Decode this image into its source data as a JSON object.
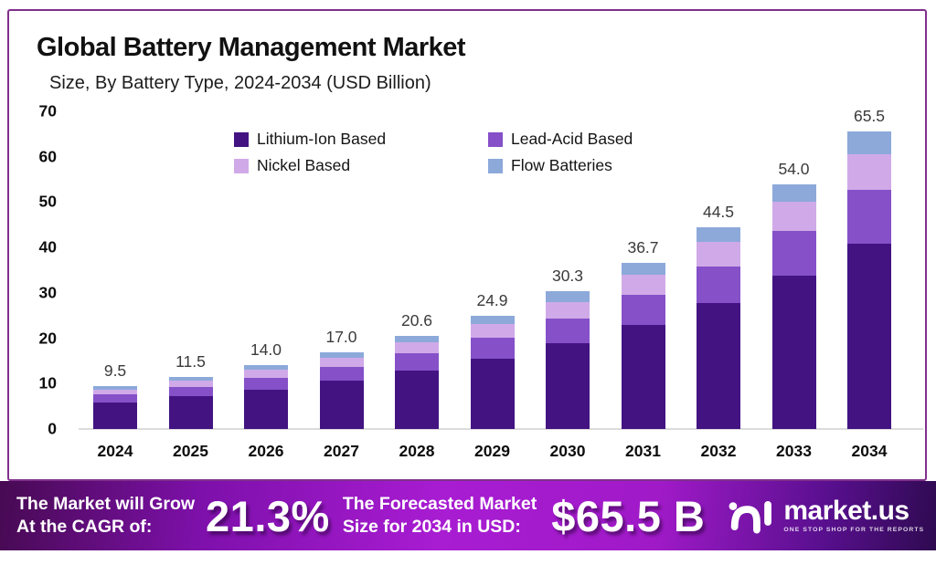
{
  "header": {
    "title": "Global Battery Management Market",
    "subtitle": "Size, By Battery Type, 2024-2034 (USD Billion)"
  },
  "chart_data": {
    "type": "bar",
    "stacked": true,
    "title": "Global Battery Management Market Size, By Battery Type, 2024-2034 (USD Billion)",
    "categories": [
      "2024",
      "2025",
      "2026",
      "2027",
      "2028",
      "2029",
      "2030",
      "2031",
      "2032",
      "2033",
      "2034"
    ],
    "series": [
      {
        "name": "Lithium-Ion Based",
        "color": "#431382",
        "values": [
          5.9,
          7.2,
          8.7,
          10.6,
          12.8,
          15.5,
          18.9,
          22.9,
          27.7,
          33.7,
          40.8
        ]
      },
      {
        "name": "Lead-Acid Based",
        "color": "#8650c8",
        "values": [
          1.7,
          2.1,
          2.6,
          3.1,
          3.8,
          4.6,
          5.5,
          6.7,
          8.2,
          9.9,
          12.0
        ]
      },
      {
        "name": "Nickel Based",
        "color": "#d0aae8",
        "values": [
          1.1,
          1.4,
          1.7,
          2.0,
          2.5,
          3.0,
          3.6,
          4.4,
          5.3,
          6.4,
          7.8
        ]
      },
      {
        "name": "Flow Batteries",
        "color": "#8ca9da",
        "values": [
          0.8,
          0.8,
          1.0,
          1.3,
          1.5,
          1.8,
          2.3,
          2.7,
          3.3,
          4.0,
          4.9
        ]
      }
    ],
    "totals": [
      9.5,
      11.5,
      14.0,
      17.0,
      20.6,
      24.9,
      30.3,
      36.7,
      44.5,
      54.0,
      65.5
    ],
    "total_labels": [
      "9.5",
      "11.5",
      "14.0",
      "17.0",
      "20.6",
      "24.9",
      "30.3",
      "36.7",
      "44.5",
      "54.0",
      "65.5"
    ],
    "y_ticks": [
      0,
      10,
      20,
      30,
      40,
      50,
      60,
      70
    ],
    "ylim": [
      0,
      70
    ],
    "xlabel": "",
    "ylabel": "",
    "grid": false,
    "legend_position": "top-center"
  },
  "footer": {
    "cagr_line1": "The Market will Grow",
    "cagr_line2": "At the CAGR of:",
    "cagr_value": "21.3%",
    "forecast_line1": "The Forecasted Market",
    "forecast_line2": "Size for 2034 in USD:",
    "forecast_value": "$65.5 B",
    "brand": {
      "name": "market.us",
      "tagline": "ONE STOP SHOP FOR THE REPORTS"
    }
  },
  "colors": {
    "card_border": "#80308c",
    "banner_purple": "#a81cd2",
    "axis_line": "#dcdcdc"
  }
}
